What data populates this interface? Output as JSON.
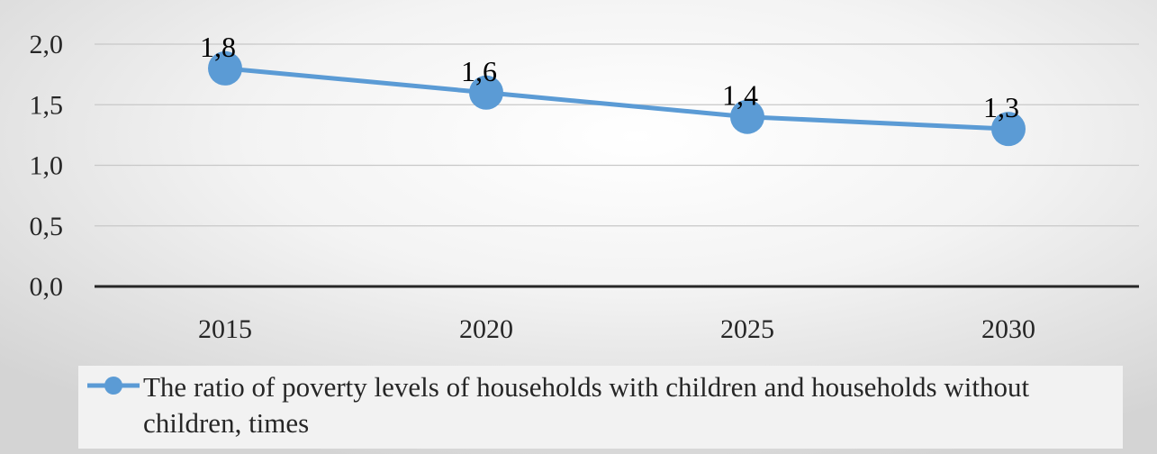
{
  "chart_data": {
    "type": "line",
    "categories": [
      "2015",
      "2020",
      "2025",
      "2030"
    ],
    "series": [
      {
        "name": "The ratio of poverty levels of households with children and households without children, times",
        "values": [
          1.8,
          1.6,
          1.4,
          1.3
        ],
        "data_labels": [
          "1,8",
          "1,6",
          "1,4",
          "1,3"
        ],
        "color": "#5b9bd5"
      }
    ],
    "y_ticks": [
      {
        "value": 0.0,
        "label": "0,0"
      },
      {
        "value": 0.5,
        "label": "0,5"
      },
      {
        "value": 1.0,
        "label": "1,0"
      },
      {
        "value": 1.5,
        "label": "1,5"
      },
      {
        "value": 2.0,
        "label": "2,0"
      }
    ],
    "ylim": [
      0,
      2
    ],
    "grid": true,
    "legend_position": "bottom",
    "title": "",
    "xlabel": "",
    "ylabel": ""
  }
}
